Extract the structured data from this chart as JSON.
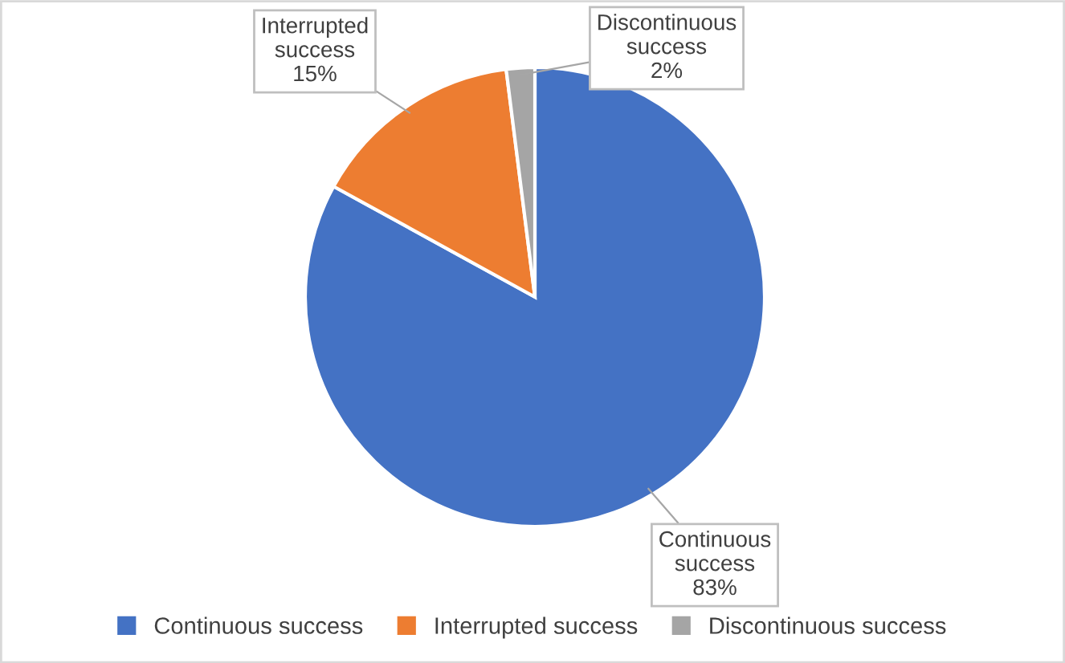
{
  "chart_data": {
    "type": "pie",
    "categories": [
      "Continuous success",
      "Interrupted success",
      "Discontinuous success"
    ],
    "values": [
      83,
      15,
      2
    ],
    "colors": [
      "#4472c4",
      "#ed7d31",
      "#a5a5a5"
    ],
    "value_labels": [
      "83%",
      "15%",
      "2%"
    ],
    "legend": "bottom"
  }
}
